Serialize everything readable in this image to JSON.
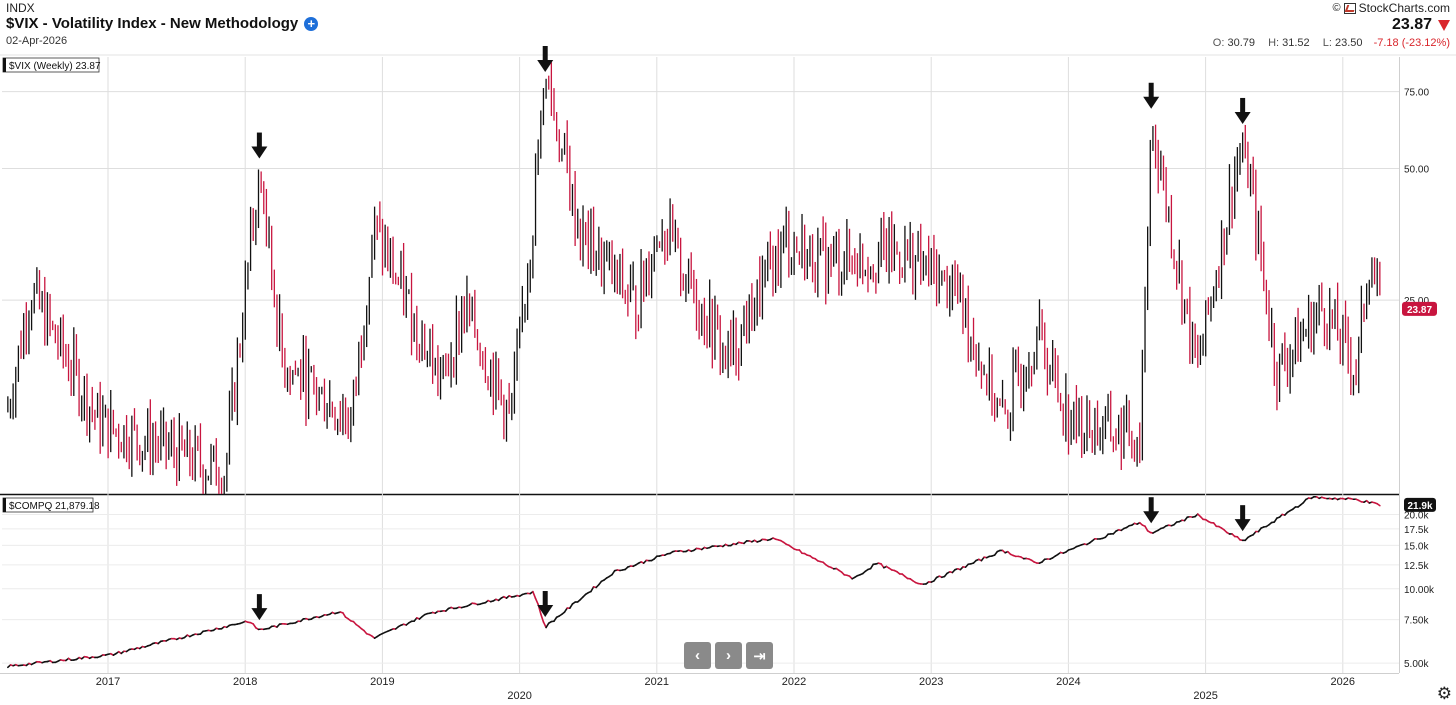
{
  "header": {
    "exchange": "INDX",
    "title": "$VIX - Volatility Index - New Methodology",
    "date": "02-Apr-2026",
    "brand": "StockCharts.com",
    "last_price": "23.87",
    "open_label": "O:",
    "open": "30.79",
    "high_label": "H:",
    "high": "31.52",
    "low_label": "L:",
    "low": "23.50",
    "change": "-7.18 (-23.12%)"
  },
  "chart_data": [
    {
      "type": "bar",
      "name": "$VIX (Weekly) 23.87",
      "legend": "$VIX (Weekly) 23.87",
      "scale": "log",
      "ylim": [
        9,
        90
      ],
      "yticks": [
        25,
        50,
        75
      ],
      "ytick_labels": [
        "25.00",
        "50.00",
        "75.00"
      ],
      "last_value": 23.87,
      "last_value_label": "23.87",
      "colors": {
        "up": "#111111",
        "down": "#c8153f"
      },
      "grid": true,
      "arrow_annotations": [
        "2018-02",
        "2020-03",
        "2024-08",
        "2025-04"
      ],
      "key_points": [
        {
          "date": "2016-04",
          "close": 14
        },
        {
          "date": "2016-06",
          "close": 26
        },
        {
          "date": "2016-12",
          "close": 13
        },
        {
          "date": "2017-11",
          "close": 10
        },
        {
          "date": "2018-02",
          "close": 50
        },
        {
          "date": "2018-04",
          "close": 18
        },
        {
          "date": "2018-10",
          "close": 13
        },
        {
          "date": "2018-12",
          "close": 36
        },
        {
          "date": "2019-06",
          "close": 16
        },
        {
          "date": "2019-08",
          "close": 24
        },
        {
          "date": "2019-12",
          "close": 13
        },
        {
          "date": "2020-02",
          "close": 40
        },
        {
          "date": "2020-03",
          "close": 82
        },
        {
          "date": "2020-06",
          "close": 35
        },
        {
          "date": "2020-11",
          "close": 24
        },
        {
          "date": "2021-01",
          "close": 37
        },
        {
          "date": "2021-07",
          "close": 18
        },
        {
          "date": "2021-12",
          "close": 34
        },
        {
          "date": "2022-03",
          "close": 30
        },
        {
          "date": "2022-10",
          "close": 32
        },
        {
          "date": "2023-03",
          "close": 26
        },
        {
          "date": "2023-07",
          "close": 13
        },
        {
          "date": "2023-10",
          "close": 21
        },
        {
          "date": "2024-01",
          "close": 13
        },
        {
          "date": "2024-07",
          "close": 12
        },
        {
          "date": "2024-08",
          "close": 65
        },
        {
          "date": "2024-12",
          "close": 17
        },
        {
          "date": "2025-04",
          "close": 60
        },
        {
          "date": "2025-07",
          "close": 17
        },
        {
          "date": "2025-11",
          "close": 24
        },
        {
          "date": "2026-02",
          "close": 17
        },
        {
          "date": "2026-03",
          "close": 31
        },
        {
          "date": "2026-04",
          "close": 23.87
        }
      ]
    },
    {
      "type": "line",
      "name": "$COMPQ 21,879.18",
      "legend": "$COMPQ 21,879.18",
      "scale": "log",
      "ylim": [
        4600,
        24000
      ],
      "yticks": [
        5000,
        7500,
        10000,
        12500,
        15000,
        17500,
        20000
      ],
      "ytick_labels": [
        "5.00k",
        "7.50k",
        "10.00k",
        "12.5k",
        "15.0k",
        "17.5k",
        "20.0k"
      ],
      "last_value": 21879.18,
      "last_value_label": "21.9k",
      "grid": true,
      "arrow_annotations": [
        "2018-02",
        "2020-03",
        "2024-08",
        "2025-04"
      ],
      "key_points": [
        {
          "date": "2016-04",
          "close": 4850
        },
        {
          "date": "2017-01",
          "close": 5400
        },
        {
          "date": "2018-01",
          "close": 7400
        },
        {
          "date": "2018-02",
          "close": 6800
        },
        {
          "date": "2018-09",
          "close": 8100
        },
        {
          "date": "2018-12",
          "close": 6300
        },
        {
          "date": "2019-05",
          "close": 8000
        },
        {
          "date": "2020-02",
          "close": 9700
        },
        {
          "date": "2020-03",
          "close": 7000
        },
        {
          "date": "2020-09",
          "close": 11700
        },
        {
          "date": "2021-02",
          "close": 14000
        },
        {
          "date": "2021-11",
          "close": 16000
        },
        {
          "date": "2022-06",
          "close": 11000
        },
        {
          "date": "2022-08",
          "close": 12700
        },
        {
          "date": "2022-12",
          "close": 10400
        },
        {
          "date": "2023-07",
          "close": 14300
        },
        {
          "date": "2023-10",
          "close": 12700
        },
        {
          "date": "2024-07",
          "close": 18600
        },
        {
          "date": "2024-08",
          "close": 16800
        },
        {
          "date": "2024-12",
          "close": 20000
        },
        {
          "date": "2025-04",
          "close": 15600
        },
        {
          "date": "2025-10",
          "close": 23500
        },
        {
          "date": "2026-02",
          "close": 23000
        },
        {
          "date": "2026-04",
          "close": 21879.18
        }
      ]
    }
  ],
  "x_axis": {
    "year_labels": [
      "2017",
      "2018",
      "2019",
      "2020",
      "2021",
      "2022",
      "2023",
      "2024",
      "2025",
      "2026"
    ],
    "year_values": [
      2017,
      2018,
      2019,
      2020,
      2021,
      2022,
      2023,
      2024,
      2025,
      2026
    ],
    "offset_years": [
      2020,
      2025
    ]
  },
  "nav": {
    "prev": "‹",
    "next": "›",
    "end": "⇥"
  },
  "icons": [
    "plus-icon",
    "down-arrow-icon",
    "gear-icon",
    "copyright-icon",
    "brand-logo-icon"
  ]
}
